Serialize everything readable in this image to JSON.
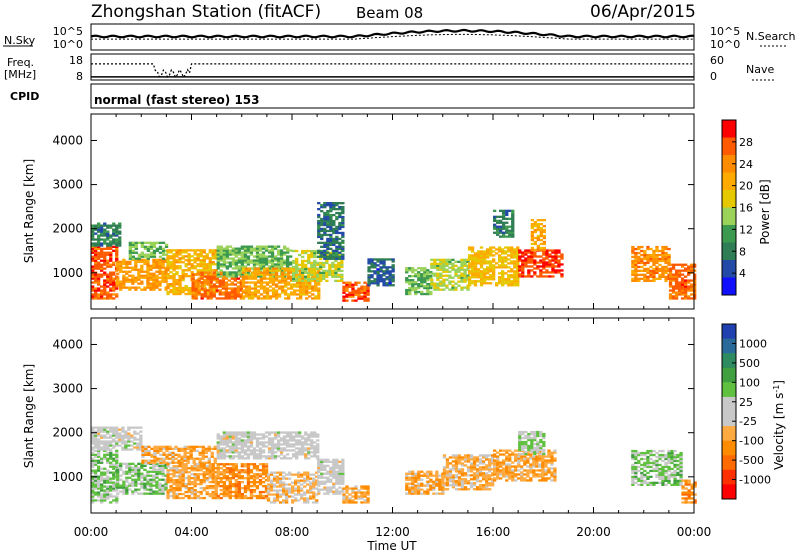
{
  "header": {
    "station": "Zhongshan Station (fitACF)",
    "beam": "Beam 08",
    "date": "06/Apr/2015"
  },
  "nsky_panel": {
    "left_label": "N.Sky",
    "left_ticks": [
      "10^5",
      "10^0"
    ],
    "right_ticks": [
      "10^5",
      "10^0"
    ],
    "right_label": "N.Search"
  },
  "freq_panel": {
    "left_label_1": "Freq.",
    "left_label_2": "[MHz]",
    "left_ticks": [
      "18",
      "8"
    ],
    "right_ticks": [
      "60",
      "0"
    ],
    "right_label": "Nave"
  },
  "cpid": {
    "label": "CPID",
    "mode": "normal (fast stereo) 153"
  },
  "x_axis": {
    "ticks": [
      "00:00",
      "04:00",
      "08:00",
      "12:00",
      "16:00",
      "20:00",
      "00:00"
    ],
    "label": "Time UT"
  },
  "power_panel": {
    "ylabel": "Slant Range [km]",
    "yticks": [
      "4000",
      "3000",
      "2000",
      "1000"
    ],
    "colorbar_title": "Power [dB]",
    "colorbar_ticks": [
      "28",
      "24",
      "20",
      "16",
      "12",
      "8",
      "4"
    ],
    "colorbar_colors": [
      "#ff0000",
      "#ff5a00",
      "#ff8c00",
      "#ffaa00",
      "#e6c800",
      "#9ad25a",
      "#3c9a50",
      "#2e7d55",
      "#244aa8",
      "#1010ff"
    ]
  },
  "velocity_panel": {
    "ylabel": "Slant Range [km]",
    "yticks": [
      "4000",
      "3000",
      "2000",
      "1000"
    ],
    "colorbar_title": "Velocity [m s",
    "colorbar_title_sup": "-1",
    "colorbar_title_end": "]",
    "colorbar_ticks": [
      "1000",
      "500",
      "100",
      "25",
      "-25",
      "-100",
      "-500",
      "-1000"
    ],
    "colorbar_colors": [
      "#2040b0",
      "#2a6a9a",
      "#2e8a60",
      "#40a040",
      "#60c040",
      "#c8c8c8",
      "#c8c8c8",
      "#ffaa40",
      "#ff8c00",
      "#ff6a00",
      "#ff3000",
      "#ff0000"
    ]
  },
  "chart_data": [
    {
      "type": "heatmap",
      "title": "Power [dB]",
      "xlabel": "Time UT",
      "ylabel": "Slant Range [km]",
      "xlim": [
        "00:00",
        "24:00"
      ],
      "ylim": [
        180,
        4600
      ],
      "color_range": [
        3,
        30
      ],
      "blobs": [
        {
          "t0": 0.0,
          "t1": 1.0,
          "r0": 400,
          "r1": 1600,
          "v": 26
        },
        {
          "t0": 0.0,
          "t1": 1.2,
          "r0": 1600,
          "r1": 2100,
          "v": 10
        },
        {
          "t0": 1.0,
          "t1": 3.0,
          "r0": 600,
          "r1": 1300,
          "v": 22
        },
        {
          "t0": 1.5,
          "t1": 3.0,
          "r0": 1300,
          "r1": 1700,
          "v": 14
        },
        {
          "t0": 3.0,
          "t1": 5.0,
          "r0": 500,
          "r1": 1500,
          "v": 20
        },
        {
          "t0": 4.0,
          "t1": 6.0,
          "r0": 400,
          "r1": 1000,
          "v": 25
        },
        {
          "t0": 5.0,
          "t1": 8.0,
          "r0": 900,
          "r1": 1600,
          "v": 14
        },
        {
          "t0": 6.0,
          "t1": 9.0,
          "r0": 400,
          "r1": 1100,
          "v": 21
        },
        {
          "t0": 8.0,
          "t1": 10.0,
          "r0": 800,
          "r1": 1500,
          "v": 16
        },
        {
          "t0": 9.0,
          "t1": 10.0,
          "r0": 1300,
          "r1": 2600,
          "v": 9
        },
        {
          "t0": 10.0,
          "t1": 11.0,
          "r0": 350,
          "r1": 800,
          "v": 26
        },
        {
          "t0": 11.0,
          "t1": 12.0,
          "r0": 700,
          "r1": 1300,
          "v": 8
        },
        {
          "t0": 12.5,
          "t1": 13.5,
          "r0": 500,
          "r1": 1100,
          "v": 14
        },
        {
          "t0": 13.5,
          "t1": 15.0,
          "r0": 600,
          "r1": 1300,
          "v": 16
        },
        {
          "t0": 15.0,
          "t1": 17.0,
          "r0": 700,
          "r1": 1600,
          "v": 19
        },
        {
          "t0": 16.0,
          "t1": 16.8,
          "r0": 1800,
          "r1": 2400,
          "v": 10
        },
        {
          "t0": 17.0,
          "t1": 18.7,
          "r0": 900,
          "r1": 1500,
          "v": 27
        },
        {
          "t0": 17.5,
          "t1": 18.0,
          "r0": 1500,
          "r1": 2200,
          "v": 21
        },
        {
          "t0": 21.5,
          "t1": 23.0,
          "r0": 800,
          "r1": 1600,
          "v": 23
        },
        {
          "t0": 23.0,
          "t1": 24.0,
          "r0": 400,
          "r1": 1200,
          "v": 25
        }
      ]
    },
    {
      "type": "heatmap",
      "title": "Velocity [m s-1]",
      "xlabel": "Time UT",
      "ylabel": "Slant Range [km]",
      "xlim": [
        "00:00",
        "24:00"
      ],
      "ylim": [
        180,
        4600
      ],
      "color_range": [
        -1000,
        1000
      ],
      "blobs": [
        {
          "t0": 0.0,
          "t1": 1.0,
          "r0": 400,
          "r1": 1600,
          "v": 200
        },
        {
          "t0": 0.0,
          "t1": 2.0,
          "r0": 1600,
          "r1": 2100,
          "v": 0
        },
        {
          "t0": 1.0,
          "t1": 3.0,
          "r0": 600,
          "r1": 1300,
          "v": 200
        },
        {
          "t0": 2.0,
          "t1": 5.0,
          "r0": 1300,
          "r1": 1700,
          "v": -300
        },
        {
          "t0": 3.0,
          "t1": 5.0,
          "r0": 500,
          "r1": 1300,
          "v": -300
        },
        {
          "t0": 5.0,
          "t1": 7.0,
          "r0": 500,
          "r1": 1300,
          "v": -400
        },
        {
          "t0": 5.0,
          "t1": 9.0,
          "r0": 1400,
          "r1": 2000,
          "v": 0
        },
        {
          "t0": 7.0,
          "t1": 9.0,
          "r0": 400,
          "r1": 1100,
          "v": -200
        },
        {
          "t0": 9.0,
          "t1": 10.0,
          "r0": 600,
          "r1": 1400,
          "v": 0
        },
        {
          "t0": 10.0,
          "t1": 11.0,
          "r0": 400,
          "r1": 800,
          "v": -300
        },
        {
          "t0": 12.5,
          "t1": 14.0,
          "r0": 600,
          "r1": 1100,
          "v": -300
        },
        {
          "t0": 14.0,
          "t1": 16.0,
          "r0": 700,
          "r1": 1500,
          "v": -250
        },
        {
          "t0": 16.0,
          "t1": 18.5,
          "r0": 900,
          "r1": 1600,
          "v": -300
        },
        {
          "t0": 17.0,
          "t1": 18.0,
          "r0": 1500,
          "r1": 2000,
          "v": 150
        },
        {
          "t0": 21.5,
          "t1": 23.5,
          "r0": 800,
          "r1": 1600,
          "v": 200
        },
        {
          "t0": 23.5,
          "t1": 24.0,
          "r0": 400,
          "r1": 900,
          "v": -400
        }
      ]
    }
  ]
}
